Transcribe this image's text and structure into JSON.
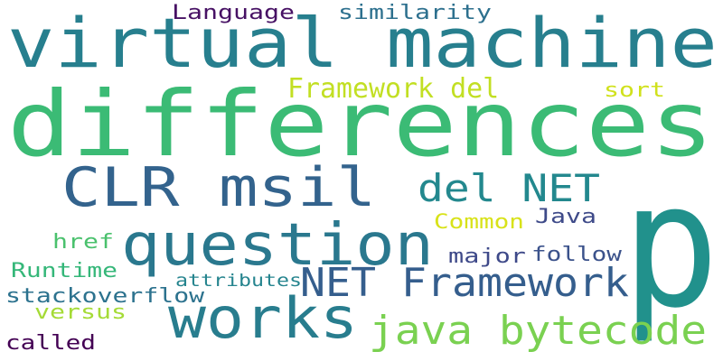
{
  "words": [
    {
      "text": "p",
      "color": "#21918c",
      "size": 190,
      "vertical": false
    },
    {
      "text": "differences",
      "color": "#3bbb75",
      "size": 100,
      "vertical": false
    },
    {
      "text": "virtual machine",
      "color": "#277f8e",
      "size": 76,
      "vertical": false
    },
    {
      "text": "question",
      "color": "#2a788e",
      "size": 64,
      "vertical": false
    },
    {
      "text": "CLR msil",
      "color": "#33638d",
      "size": 60,
      "vertical": false
    },
    {
      "text": "works",
      "color": "#287d8e",
      "size": 62,
      "vertical": false
    },
    {
      "text": "NET Framework",
      "color": "#355e8d",
      "size": 44,
      "vertical": false
    },
    {
      "text": "java bytecode",
      "color": "#7ad151",
      "size": 44,
      "vertical": false
    },
    {
      "text": "del NET",
      "color": "#23888e",
      "size": 42,
      "vertical": false
    },
    {
      "text": "Framework del",
      "color": "#c2df23",
      "size": 30,
      "vertical": false
    },
    {
      "text": "Language",
      "color": "#471164",
      "size": 22,
      "vertical": false
    },
    {
      "text": "similarity",
      "color": "#2d708e",
      "size": 22,
      "vertical": false
    },
    {
      "text": "sort",
      "color": "#d0e11c",
      "size": 22,
      "vertical": false
    },
    {
      "text": "Common",
      "color": "#d8e219",
      "size": 22,
      "vertical": false
    },
    {
      "text": "Java",
      "color": "#3e4a89",
      "size": 22,
      "vertical": false
    },
    {
      "text": "href",
      "color": "#4ac16d",
      "size": 22,
      "vertical": false
    },
    {
      "text": "major",
      "color": "#3e4989",
      "size": 22,
      "vertical": false
    },
    {
      "text": "follow",
      "color": "#3b528b",
      "size": 22,
      "vertical": false
    },
    {
      "text": "Runtime",
      "color": "#35b779",
      "size": 22,
      "vertical": false
    },
    {
      "text": "attributes",
      "color": "#25848e",
      "size": 19,
      "vertical": false
    },
    {
      "text": "stackoverflow",
      "color": "#2c728e",
      "size": 22,
      "vertical": false
    },
    {
      "text": "versus",
      "color": "#a5db36",
      "size": 22,
      "vertical": false
    },
    {
      "text": "called",
      "color": "#440154",
      "size": 22,
      "vertical": false
    }
  ]
}
